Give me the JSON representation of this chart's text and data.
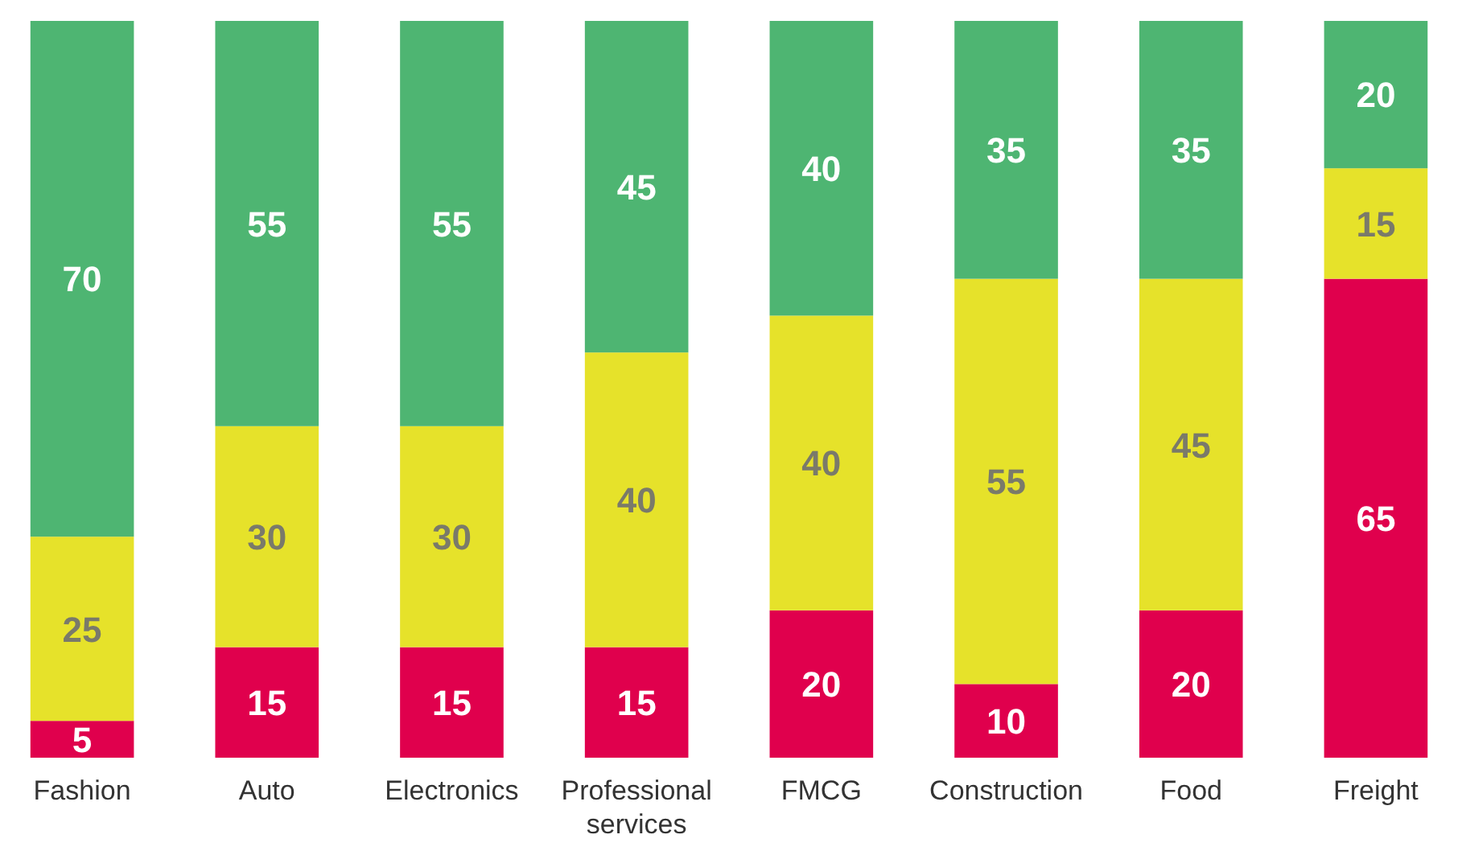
{
  "chart_data": {
    "type": "bar",
    "stacked": true,
    "data_labels": true,
    "tick_labels": "x",
    "categories": [
      "Fashion",
      "Auto",
      "Electronics",
      "Professional services",
      "FMCG",
      "Construction",
      "Food",
      "Freight"
    ],
    "series": [
      {
        "color": "#e0004d",
        "values": [
          5,
          15,
          15,
          15,
          20,
          10,
          20,
          65
        ]
      },
      {
        "color": "#e6e22a",
        "values": [
          25,
          30,
          30,
          40,
          40,
          55,
          45,
          15
        ]
      },
      {
        "color": "#4eb572",
        "values": [
          70,
          55,
          55,
          45,
          40,
          35,
          35,
          20
        ]
      }
    ]
  }
}
